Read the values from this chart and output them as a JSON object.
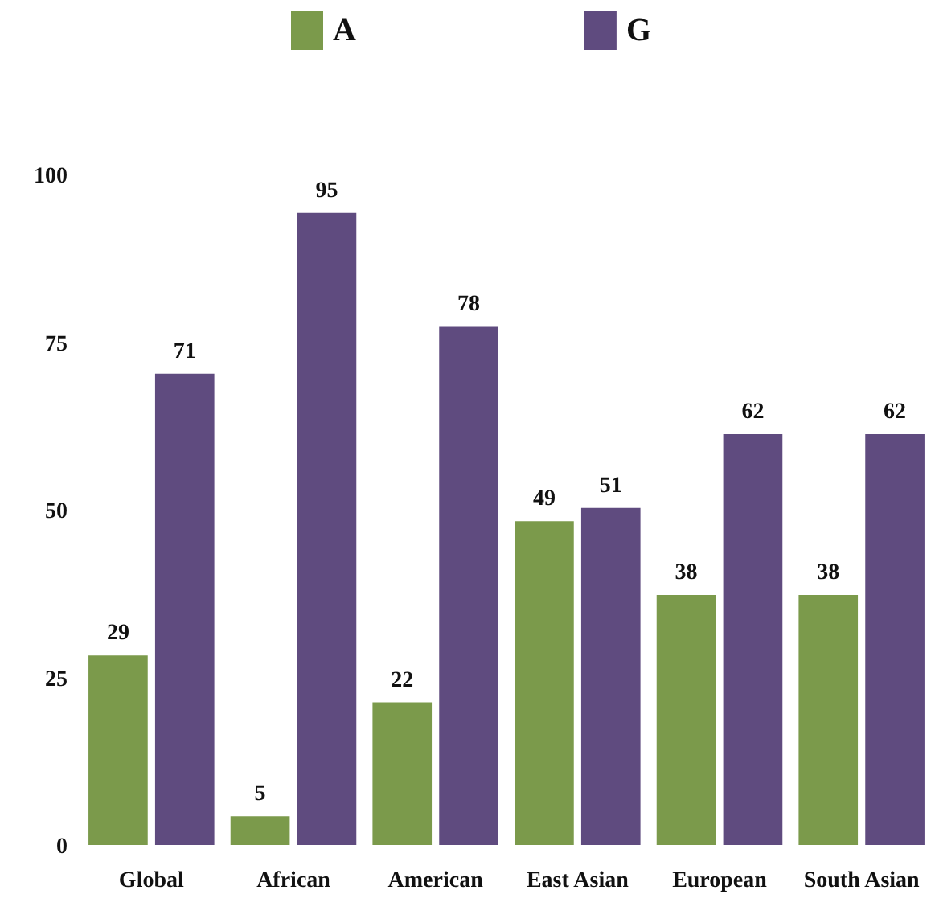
{
  "chart_data": {
    "type": "bar",
    "categories": [
      "Global",
      "African",
      "American",
      "East Asian",
      "European",
      "South Asian"
    ],
    "series": [
      {
        "name": "A",
        "color": "#7b9a4b",
        "values": [
          29,
          5,
          22,
          49,
          38,
          38
        ]
      },
      {
        "name": "G",
        "color": "#5f4b7f",
        "values": [
          71,
          95,
          78,
          51,
          62,
          62
        ]
      }
    ],
    "ylim": [
      0,
      100
    ],
    "yticks": [
      0,
      25,
      50,
      75,
      100
    ],
    "grid": false,
    "legend": "top",
    "data_labels": true
  }
}
